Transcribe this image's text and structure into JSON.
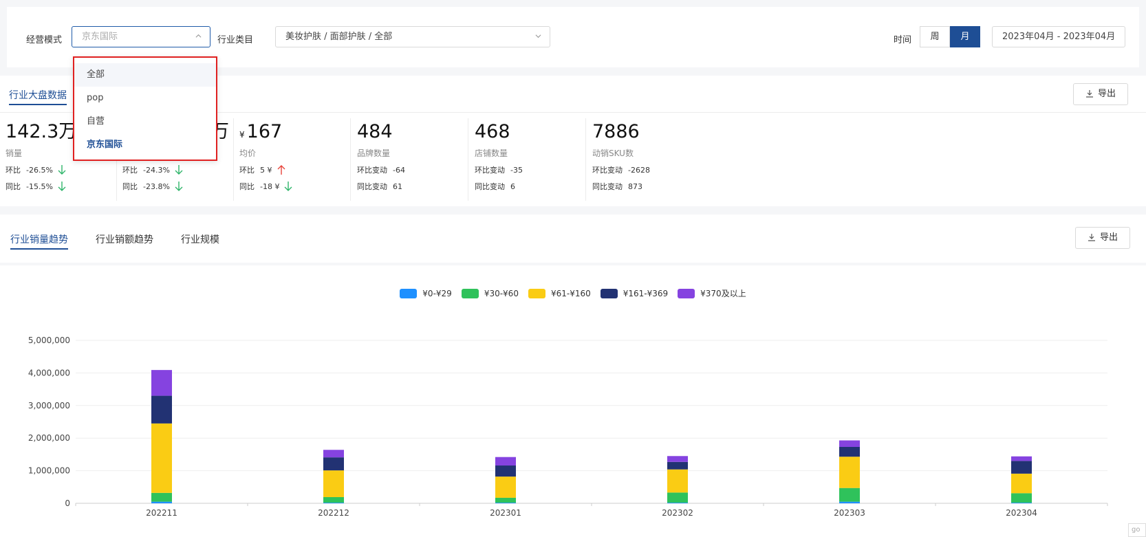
{
  "filters": {
    "mode_label": "经营模式",
    "mode_value": "京东国际",
    "industry_label": "行业类目",
    "industry_value": "美妆护肤 / 面部护肤 / 全部",
    "time_label": "时间",
    "period_week": "周",
    "period_month": "月",
    "date_range": "2023年04月 - 2023年04月"
  },
  "dropdown": {
    "options": [
      "全部",
      "pop",
      "自营",
      "京东国际"
    ]
  },
  "kpi_panel": {
    "tab": "行业大盘数据",
    "export_label": "导出",
    "cards": [
      {
        "value": "142.3万",
        "label": "销量",
        "row1_label": "环比",
        "row1_value": "-26.5%",
        "row1_trend": "down",
        "row2_label": "同比",
        "row2_value": "-15.5%",
        "row2_trend": "down"
      },
      {
        "value": "万",
        "label": "销额",
        "row1_label": "环比",
        "row1_value": "-24.3%",
        "row1_trend": "down",
        "row2_label": "同比",
        "row2_value": "-23.8%",
        "row2_trend": "down"
      },
      {
        "currency": "¥",
        "value": "167",
        "label": "均价",
        "row1_label": "环比",
        "row1_value": "5 ¥",
        "row1_trend": "up",
        "row2_label": "同比",
        "row2_value": "-18 ¥",
        "row2_trend": "down"
      },
      {
        "value": "484",
        "label": "品牌数量",
        "row1_label": "环比变动",
        "row1_value": "-64",
        "row2_label": "同比变动",
        "row2_value": "61"
      },
      {
        "value": "468",
        "label": "店铺数量",
        "row1_label": "环比变动",
        "row1_value": "-35",
        "row2_label": "同比变动",
        "row2_value": "6"
      },
      {
        "value": "7886",
        "label": "动销SKU数",
        "row1_label": "环比变动",
        "row1_value": "-2628",
        "row2_label": "同比变动",
        "row2_value": "873"
      }
    ]
  },
  "trend_panel": {
    "tabs": [
      "行业销量趋势",
      "行业销额趋势",
      "行业规模"
    ],
    "export_label": "导出"
  },
  "colors": {
    "accent": "#1e4e95",
    "down": "#2fb56a",
    "up": "#e8453c"
  },
  "chart_data": {
    "type": "bar",
    "stacked": true,
    "categories": [
      "202211",
      "202212",
      "202301",
      "202302",
      "202303",
      "202304"
    ],
    "series": [
      {
        "name": "¥0-¥29",
        "color": "#1e90ff",
        "values": [
          50000,
          20000,
          20000,
          20000,
          50000,
          20000
        ]
      },
      {
        "name": "¥30-¥60",
        "color": "#2fc25b",
        "values": [
          270000,
          170000,
          150000,
          310000,
          420000,
          290000
        ]
      },
      {
        "name": "¥61-¥160",
        "color": "#facc14",
        "values": [
          2130000,
          820000,
          650000,
          710000,
          960000,
          600000
        ]
      },
      {
        "name": "¥161-¥369",
        "color": "#223273",
        "values": [
          850000,
          400000,
          340000,
          230000,
          300000,
          390000
        ]
      },
      {
        "name": "¥370及以上",
        "color": "#8543e0",
        "values": [
          790000,
          230000,
          260000,
          180000,
          200000,
          140000
        ]
      }
    ],
    "yticks": [
      "0",
      "1,000,000",
      "2,000,000",
      "3,000,000",
      "4,000,000",
      "5,000,000"
    ],
    "ylim": [
      0,
      5000000
    ],
    "grid": true,
    "legend_position": "top-center"
  }
}
